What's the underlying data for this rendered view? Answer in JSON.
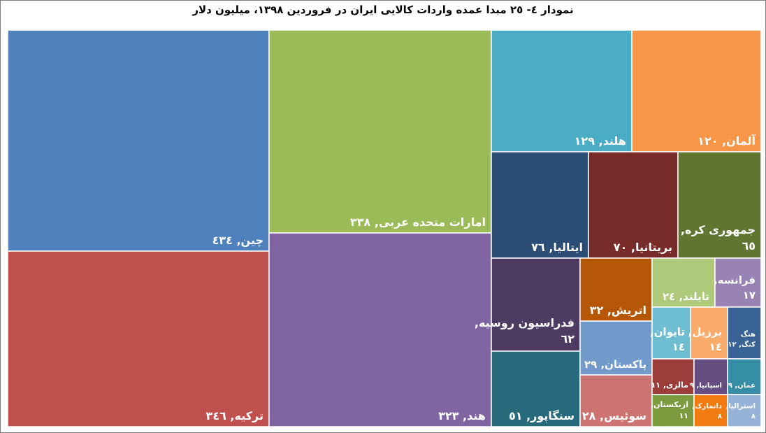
{
  "title": "نمودار ٤- ٢٥ مبدا عمده واردات کالایی ایران در فروردین ۱۳۹۸، میلیون دلار",
  "chart_data": {
    "type": "treemap",
    "title": "نمودار ٤- ٢٥ مبدا عمده واردات کالایی ایران در فروردین ۱۳۹۸، میلیون دلار",
    "unit": "میلیون دلار",
    "items": [
      {
        "name": "چین",
        "value": 434,
        "label": "چین, ٤٣٤",
        "color": "#4F81BD"
      },
      {
        "name": "ترکیه",
        "value": 346,
        "label": "ترکیه, ٣٤٦",
        "color": "#C0504D"
      },
      {
        "name": "امارات متحده عربی",
        "value": 338,
        "label": "امارات متحده عربی, ٣٣٨",
        "color": "#9BBB59"
      },
      {
        "name": "هند",
        "value": 323,
        "label": "هند, ٣٢٣",
        "color": "#8064A2"
      },
      {
        "name": "هلند",
        "value": 129,
        "label": "هلند, ١٢٩",
        "color": "#4BACC6"
      },
      {
        "name": "آلمان",
        "value": 120,
        "label": "آلمان, ١٢٠",
        "color": "#F79646"
      },
      {
        "name": "ایتالیا",
        "value": 76,
        "label": "ایتالیا, ٧٦",
        "color": "#2C4D75"
      },
      {
        "name": "بریتانیا",
        "value": 70,
        "label": "بریتانیا, ٧٠",
        "color": "#772C2A"
      },
      {
        "name": "جمهوری کره",
        "value": 65,
        "label": "جمهوری کره, ٦٥",
        "color": "#5F7530"
      },
      {
        "name": "فدراسیون روسیه",
        "value": 62,
        "label": "فدراسیون روسیه, ٦٢",
        "color": "#4D3B62"
      },
      {
        "name": "سنگاپور",
        "value": 51,
        "label": "سنگاپور, ٥١",
        "color": "#276A7C"
      },
      {
        "name": "اتریش",
        "value": 32,
        "label": "اتریش, ٣٢",
        "color": "#B65708"
      },
      {
        "name": "پاکستان",
        "value": 29,
        "label": "پاکستان, ٢٩",
        "color": "#729ACA"
      },
      {
        "name": "سوئیس",
        "value": 28,
        "label": "سوئیس, ٢٨",
        "color": "#CD7371"
      },
      {
        "name": "تایلند",
        "value": 24,
        "label": "تایلند, ٢٤",
        "color": "#AFC97A"
      },
      {
        "name": "فرانسه",
        "value": 17,
        "label": "فرانسه, ١٧",
        "color": "#9983B5"
      },
      {
        "name": "تایوان",
        "value": 14,
        "label": "تایوان, ١٤",
        "color": "#6FBDD1"
      },
      {
        "name": "برزیل",
        "value": 14,
        "label": "برزیل, ١٤",
        "color": "#F9AB6B"
      },
      {
        "name": "هنگ کنگ",
        "value": 12,
        "label": "هنگ کنگ, ١٢",
        "color": "#3A6395"
      },
      {
        "name": "مالزی",
        "value": 11,
        "label": "مالزی, ١١",
        "color": "#9C3D3A"
      },
      {
        "name": "ازبکستان",
        "value": 11,
        "label": "ازبکستان, ١١",
        "color": "#7D9A3E"
      },
      {
        "name": "اسپانیا",
        "value": 9,
        "label": "اسپانیا, ٩",
        "color": "#664E83"
      },
      {
        "name": "عمان",
        "value": 9,
        "label": "عمان, ٩",
        "color": "#358DA6"
      },
      {
        "name": "دانمارک",
        "value": 8,
        "label": "دانمارک, ٨",
        "color": "#F27B12"
      },
      {
        "name": "استرالیا",
        "value": 8,
        "label": "استرالیا, ٨",
        "color": "#95B3D7"
      }
    ]
  }
}
